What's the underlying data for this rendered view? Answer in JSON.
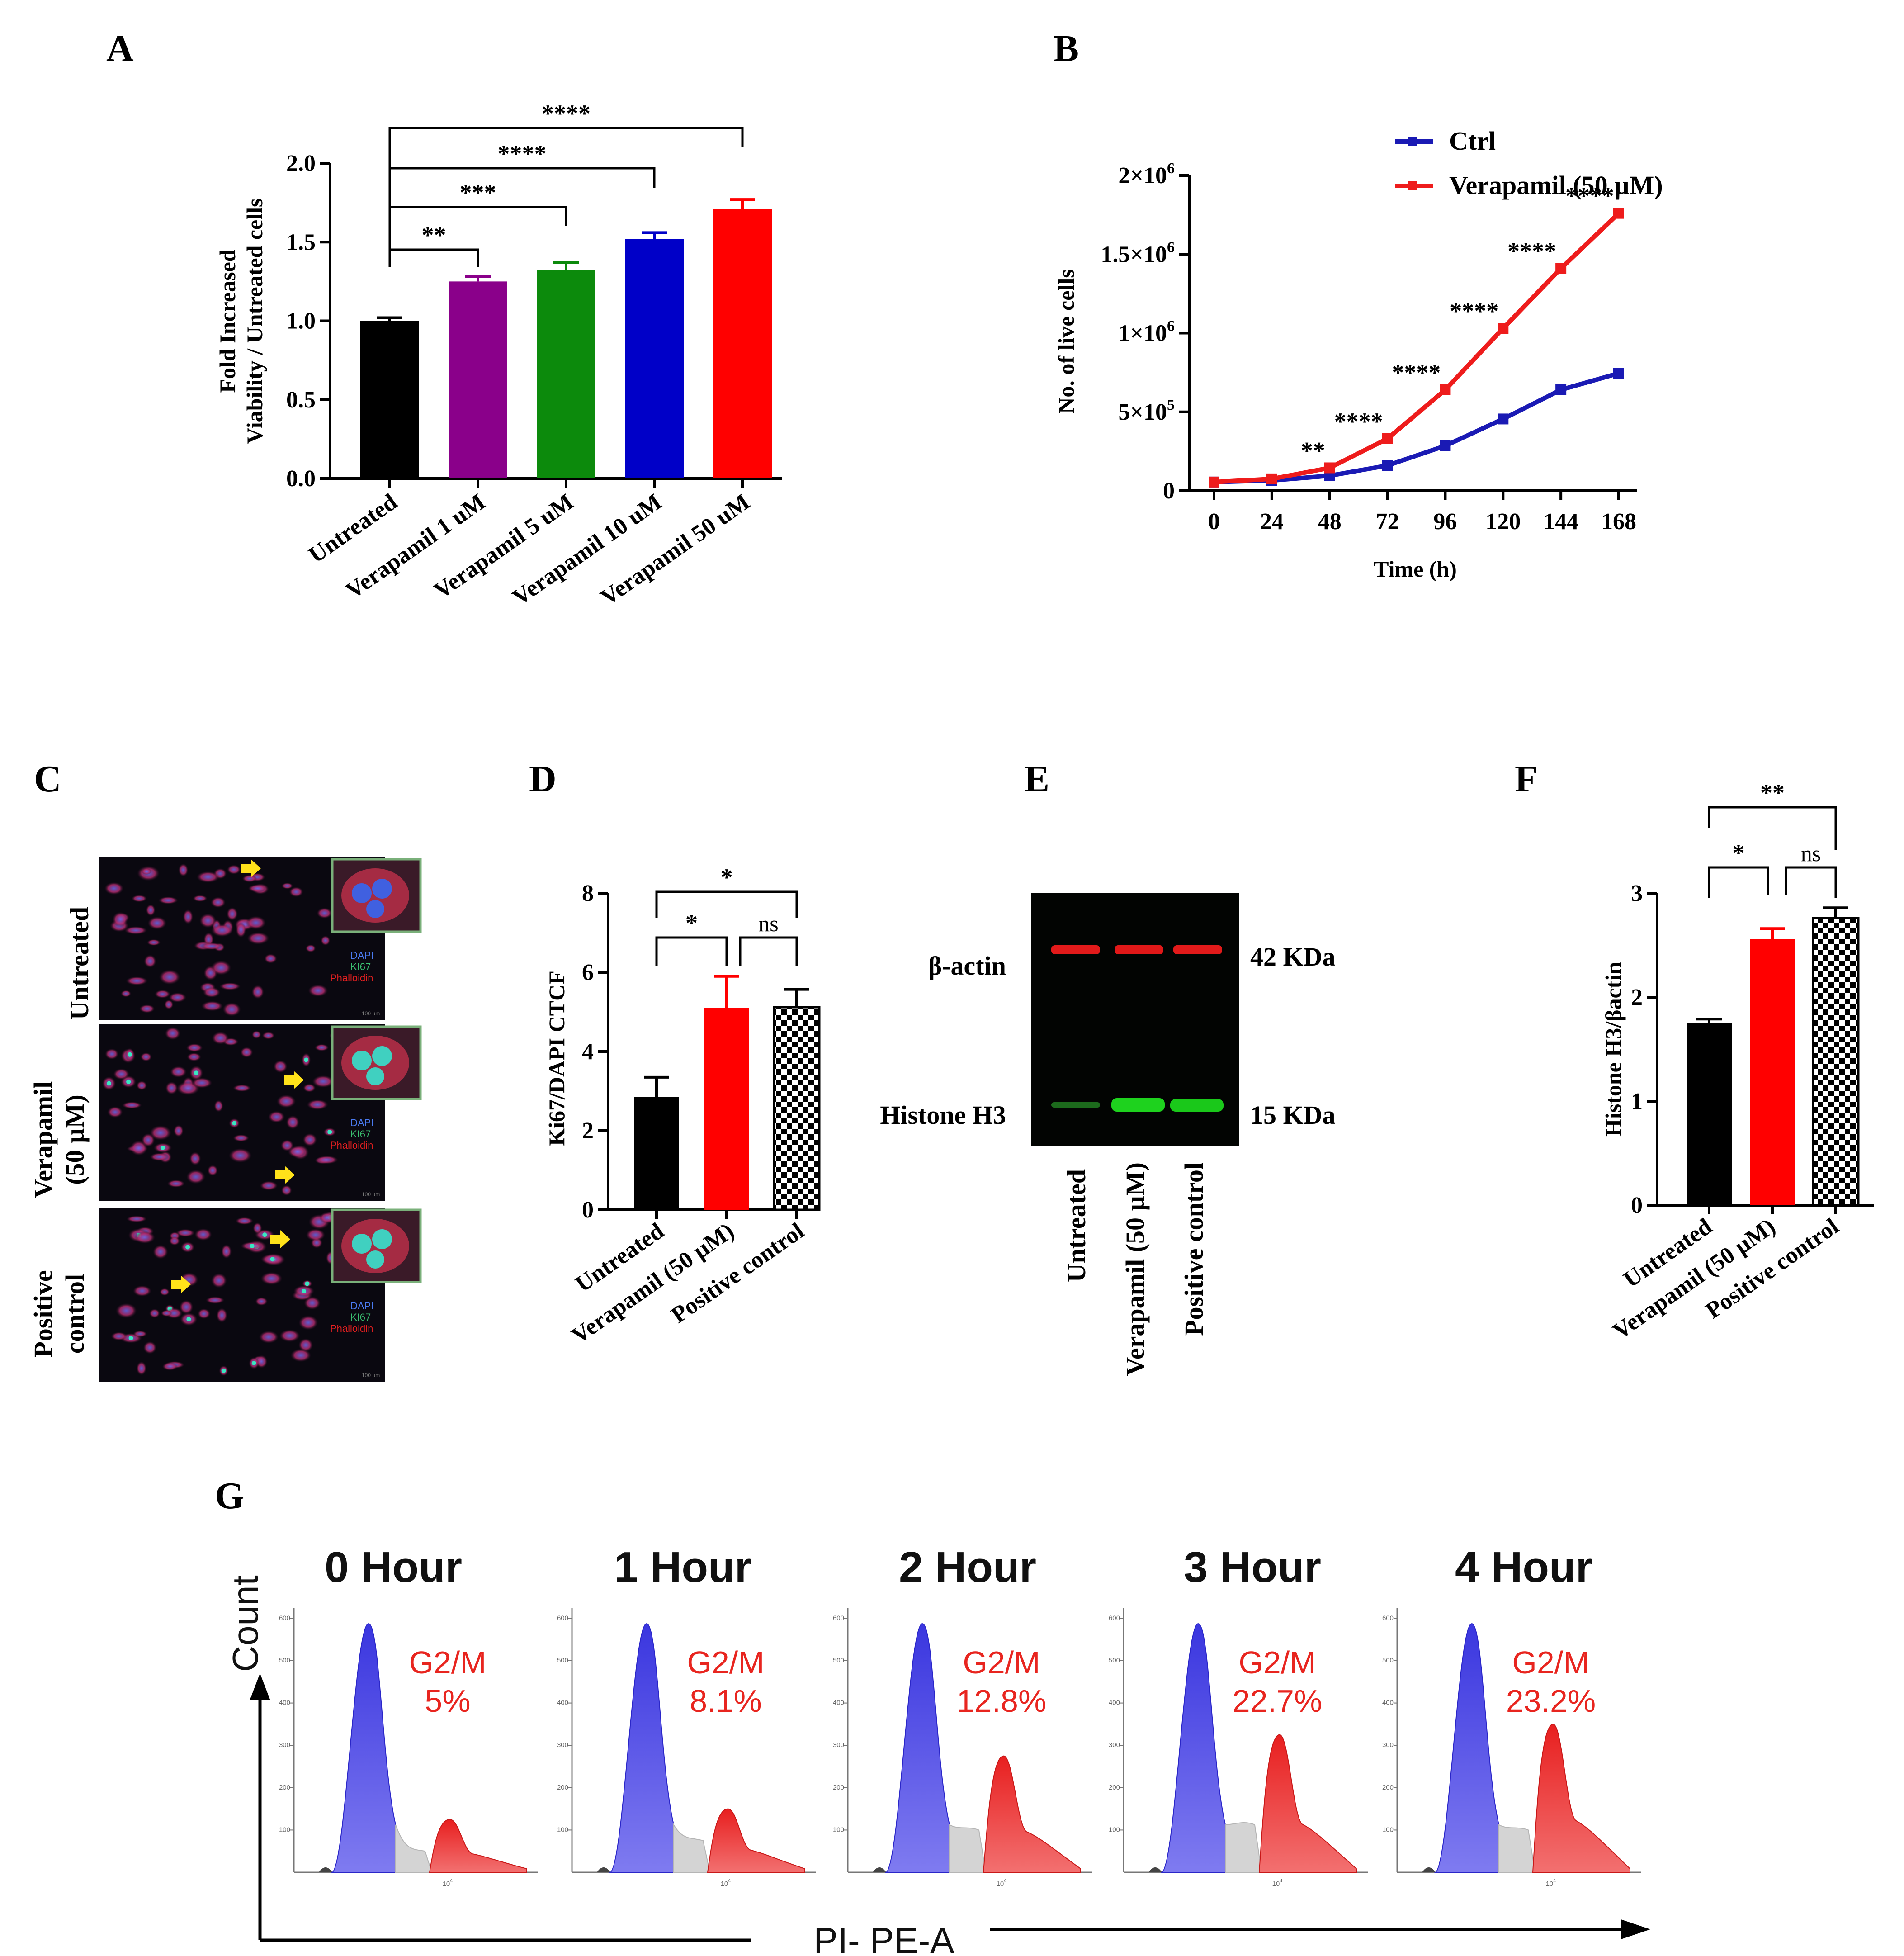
{
  "panels": {
    "A": "A",
    "B": "B",
    "C": "C",
    "D": "D",
    "E": "E",
    "F": "F",
    "G": "G"
  },
  "colors": {
    "black": "#000000",
    "purple": "#8a008a",
    "green": "#0c8a0c",
    "blue": "#0000c8",
    "red": "#ff0000",
    "ctrl_line": "#1a1ab4",
    "verap_line": "#ee1c1c",
    "histo_blue": "#4b46e6",
    "histo_red": "#ee2a2a",
    "histo_gray": "#d2d2d2"
  },
  "chart_data": [
    {
      "id": "A",
      "type": "bar",
      "ylabel_line1": "Fold Increased",
      "ylabel_line2": "Viability / Untreated cells",
      "ylim": [
        0,
        2.0
      ],
      "yticks": [
        "0.0",
        "0.5",
        "1.0",
        "1.5",
        "2.0"
      ],
      "categories": [
        "Untreated",
        "Verapamil 1 uM",
        "Verapamil 5 uM",
        "Verapamil 10 uM",
        "Verapamil 50 uM"
      ],
      "values": [
        1.0,
        1.25,
        1.32,
        1.52,
        1.71
      ],
      "errors": [
        0.02,
        0.03,
        0.05,
        0.04,
        0.06
      ],
      "bar_colors": [
        "#000000",
        "#8a008a",
        "#0c8a0c",
        "#0000c8",
        "#ff0000"
      ],
      "significance": [
        {
          "from": 0,
          "to": 1,
          "label": "**"
        },
        {
          "from": 0,
          "to": 2,
          "label": "***"
        },
        {
          "from": 0,
          "to": 3,
          "label": "****"
        },
        {
          "from": 0,
          "to": 4,
          "label": "****"
        }
      ]
    },
    {
      "id": "B",
      "type": "line",
      "xlabel": "Time (h)",
      "ylabel": "No. of live cells",
      "x": [
        0,
        24,
        48,
        72,
        96,
        120,
        144,
        168
      ],
      "xticks": [
        "0",
        "24",
        "48",
        "72",
        "96",
        "120",
        "144",
        "168"
      ],
      "ylim": [
        0,
        2000000
      ],
      "ytick_values": [
        0,
        500000,
        1000000,
        1500000,
        2000000
      ],
      "yticks": [
        {
          "base": "0",
          "exp": ""
        },
        {
          "base": "5×10",
          "exp": "5"
        },
        {
          "base": "1×10",
          "exp": "6"
        },
        {
          "base": "1.5×10",
          "exp": "6"
        },
        {
          "base": "2×10",
          "exp": "6"
        }
      ],
      "series": [
        {
          "name": "Ctrl",
          "color": "#1a1ab4",
          "values": [
            55000,
            65000,
            95000,
            160000,
            285000,
            455000,
            640000,
            745000
          ]
        },
        {
          "name": "Verapamil (50 µM)",
          "color": "#ee1c1c",
          "values": [
            55000,
            75000,
            145000,
            330000,
            640000,
            1030000,
            1410000,
            1760000
          ]
        }
      ],
      "point_annotations": [
        "",
        "",
        "**",
        "****",
        "****",
        "****",
        "****",
        "****"
      ]
    },
    {
      "id": "D",
      "type": "bar",
      "ylabel": "Ki67/DAPI CTCF",
      "ylim": [
        0,
        8
      ],
      "yticks": [
        "0",
        "2",
        "4",
        "6",
        "8"
      ],
      "categories": [
        "Untreated",
        "Verapamil (50 µM)",
        "Positive control"
      ],
      "values": [
        2.85,
        5.1,
        5.12
      ],
      "errors": [
        0.5,
        0.8,
        0.45
      ],
      "bar_fills": [
        "#000000",
        "#ff0000",
        "checker"
      ],
      "significance": [
        {
          "from": 0,
          "to": 1,
          "label": "*"
        },
        {
          "from": 1,
          "to": 2,
          "label": "ns"
        },
        {
          "from": 0,
          "to": 2,
          "label": "*"
        }
      ]
    },
    {
      "id": "F",
      "type": "bar",
      "ylabel": "Histone H3/βactin",
      "ylim": [
        0,
        3
      ],
      "yticks": [
        "0",
        "1",
        "2",
        "3"
      ],
      "categories": [
        "Untreated",
        "Verapamil (50 µM)",
        "Positive control"
      ],
      "values": [
        1.75,
        2.56,
        2.76
      ],
      "errors": [
        0.04,
        0.1,
        0.1
      ],
      "bar_fills": [
        "#000000",
        "#ff0000",
        "checker"
      ],
      "significance": [
        {
          "from": 0,
          "to": 1,
          "label": "*"
        },
        {
          "from": 1,
          "to": 2,
          "label": "ns"
        },
        {
          "from": 0,
          "to": 2,
          "label": "**"
        }
      ]
    },
    {
      "id": "G",
      "type": "histogram",
      "xlabel": "PI- PE-A",
      "ylabel": "Count",
      "x_tick_label": "10",
      "x_tick_exp": "4",
      "y_tick_labels": [
        "100",
        "200",
        "300",
        "400",
        "500",
        "600"
      ],
      "timepoints": [
        {
          "title": "0 Hour",
          "phase": "G2/M",
          "percent": "5%",
          "g2m_peak": 0.2,
          "s_level": 0.08
        },
        {
          "title": "1 Hour",
          "phase": "G2/M",
          "percent": "8.1%",
          "g2m_peak": 0.24,
          "s_level": 0.12
        },
        {
          "title": "2 Hour",
          "phase": "G2/M",
          "percent": "12.8%",
          "g2m_peak": 0.44,
          "s_level": 0.16
        },
        {
          "title": "3 Hour",
          "phase": "G2/M",
          "percent": "22.7%",
          "g2m_peak": 0.52,
          "s_level": 0.18
        },
        {
          "title": "4 Hour",
          "phase": "G2/M",
          "percent": "23.2%",
          "g2m_peak": 0.56,
          "s_level": 0.16
        }
      ]
    }
  ],
  "panel_c": {
    "rows": [
      "Untreated",
      "Verapamil",
      "(50 µM)",
      "Positive",
      "control"
    ],
    "legend": [
      "DAPI",
      "KI67",
      "Phalloidin"
    ],
    "scale_text": "100 µm"
  },
  "panel_e": {
    "bands": [
      {
        "name": "β-actin",
        "size": "42 KDa"
      },
      {
        "name": "Histone H3",
        "size": "15 KDa"
      }
    ],
    "lanes": [
      "Untreated",
      "Verapamil (50 µM)",
      "Positive control"
    ]
  }
}
